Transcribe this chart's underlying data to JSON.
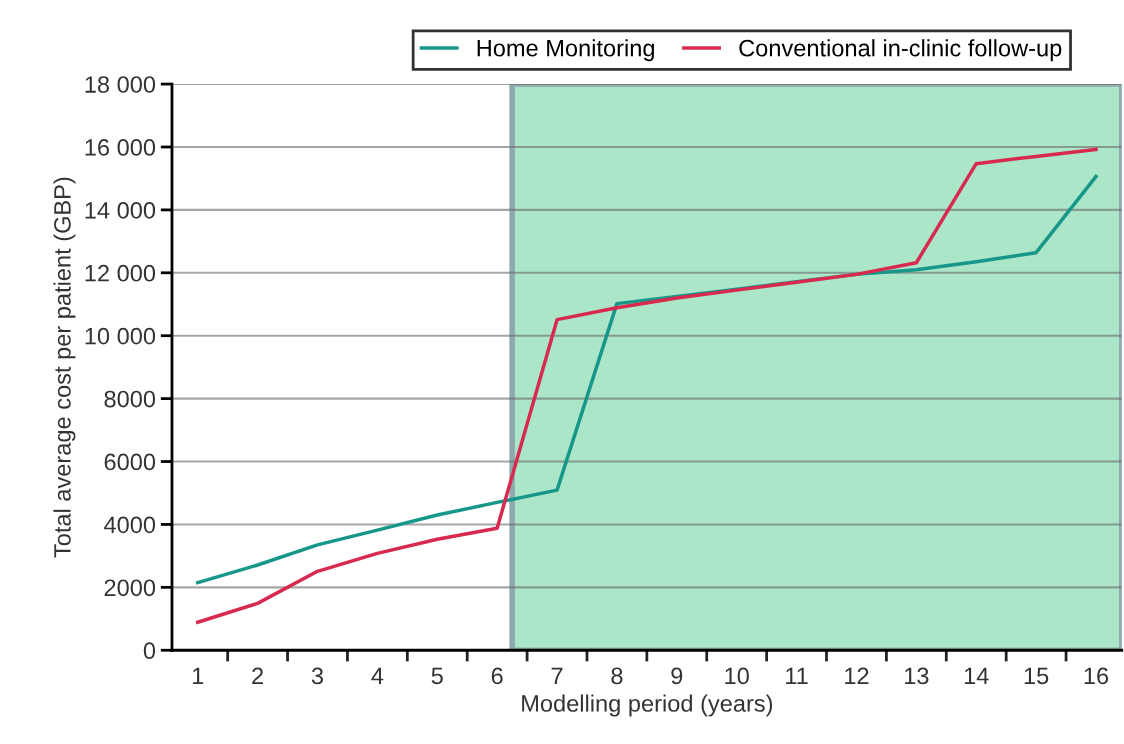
{
  "chart_data": {
    "type": "line",
    "xlabel": "Modelling period (years)",
    "ylabel": "Total average cost per patient (GBP)",
    "x": [
      1,
      2,
      3,
      4,
      5,
      6,
      7,
      8,
      9,
      10,
      11,
      12,
      13,
      14,
      15,
      16
    ],
    "series": [
      {
        "name": "Home Monitoring",
        "color": "#17978a",
        "values": [
          2150,
          2710,
          3350,
          3820,
          4300,
          4700,
          5090,
          11020,
          11250,
          11480,
          11720,
          11950,
          12100,
          12350,
          12640,
          15060
        ]
      },
      {
        "name": "Conventional in-clinic follow-up",
        "color": "#d8294f",
        "values": [
          890,
          1490,
          2510,
          3080,
          3530,
          3880,
          10510,
          10890,
          11200,
          11450,
          11700,
          11950,
          12320,
          15470,
          15700,
          15920
        ]
      }
    ],
    "xlim": [
      0.57,
      16.43
    ],
    "xticks": [
      1,
      2,
      3,
      4,
      5,
      6,
      7,
      8,
      9,
      10,
      11,
      12,
      13,
      14,
      15,
      16,
      {
        "value": 1.5,
        "label": null
      },
      {
        "value": 2.5,
        "label": null
      },
      {
        "value": 3.5,
        "label": null
      },
      {
        "value": 4.5,
        "label": null
      },
      {
        "value": 5.5,
        "label": null
      },
      {
        "value": 6.5,
        "label": null
      },
      {
        "value": 7.5,
        "label": null
      },
      {
        "value": 8.5,
        "label": null
      },
      {
        "value": 9.5,
        "label": null
      },
      {
        "value": 10.5,
        "label": null
      },
      {
        "value": 11.5,
        "label": null
      },
      {
        "value": 12.5,
        "label": null
      },
      {
        "value": 13.5,
        "label": null
      },
      {
        "value": 14.5,
        "label": null
      },
      {
        "value": 15.5,
        "label": null
      }
    ],
    "ylim": [
      0,
      18000
    ],
    "yticks": [
      0,
      2000,
      4000,
      6000,
      8000,
      {
        "value": 10000,
        "label": "10 000"
      },
      {
        "value": 12000,
        "label": "12 000"
      },
      {
        "value": 14000,
        "label": "14 000"
      },
      {
        "value": 16000,
        "label": "16 000"
      },
      {
        "value": 18000,
        "label": "18 000"
      }
    ],
    "bands": [
      {
        "axis": "x",
        "from": 6.25,
        "to": 16.43,
        "color": "#abe6c9"
      }
    ],
    "grid": "y",
    "legend": "top",
    "marker": "none",
    "line_style": "solid"
  }
}
